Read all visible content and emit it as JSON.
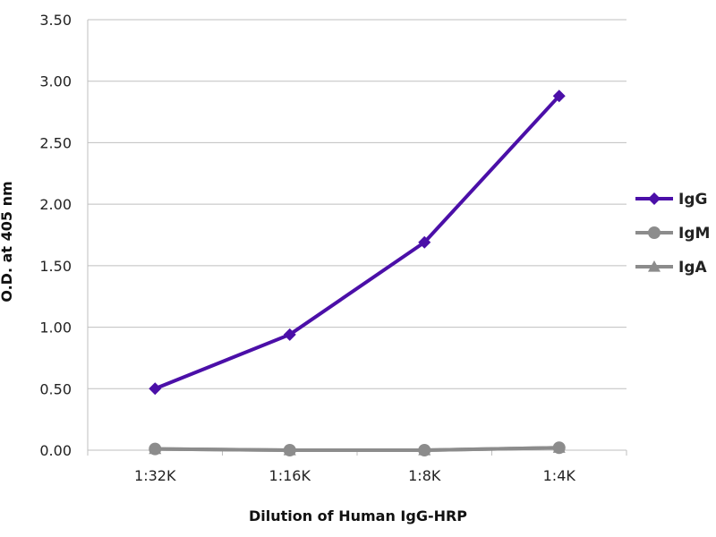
{
  "chart_data": {
    "type": "line",
    "title": "",
    "xlabel": "Dilution of Human IgG-HRP",
    "ylabel": "O.D. at 405 nm",
    "categories": [
      "1:32K",
      "1:16K",
      "1:8K",
      "1:4K"
    ],
    "ylim": [
      0,
      3.5
    ],
    "yticks": [
      "0.00",
      "0.50",
      "1.00",
      "1.50",
      "2.00",
      "2.50",
      "3.00",
      "3.50"
    ],
    "grid": "horizontal",
    "legend_position": "right",
    "series": [
      {
        "name": "IgG",
        "values": [
          0.5,
          0.94,
          1.69,
          2.88
        ],
        "color": "#4B0FA8",
        "marker": "diamond"
      },
      {
        "name": "IgM",
        "values": [
          0.01,
          0.0,
          0.0,
          0.02
        ],
        "color": "#8C8C8C",
        "marker": "circle"
      },
      {
        "name": "IgA",
        "values": [
          0.01,
          0.0,
          0.0,
          0.02
        ],
        "color": "#8C8C8C",
        "marker": "triangle"
      }
    ]
  }
}
